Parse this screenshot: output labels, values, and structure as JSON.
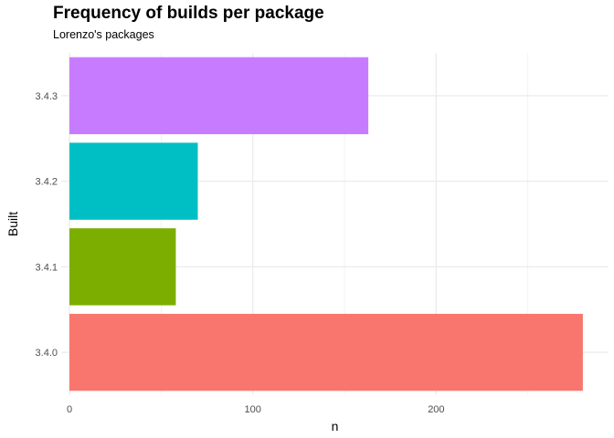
{
  "chart_data": {
    "type": "bar",
    "orientation": "horizontal",
    "title": "Frequency of builds per package",
    "subtitle": "Lorenzo's packages",
    "xlabel": "n",
    "ylabel": "Built",
    "categories": [
      "3.4.0",
      "3.4.1",
      "3.4.2",
      "3.4.3"
    ],
    "values": [
      280,
      58,
      70,
      163
    ],
    "colors": [
      "#F8766D",
      "#7CAE00",
      "#00BFC4",
      "#C77CFF"
    ],
    "xlim": [
      -4.5,
      294
    ],
    "xticks": [
      0,
      100,
      200
    ],
    "xticks_minor": [
      50,
      150,
      250
    ],
    "grid": true,
    "legend": "none"
  }
}
